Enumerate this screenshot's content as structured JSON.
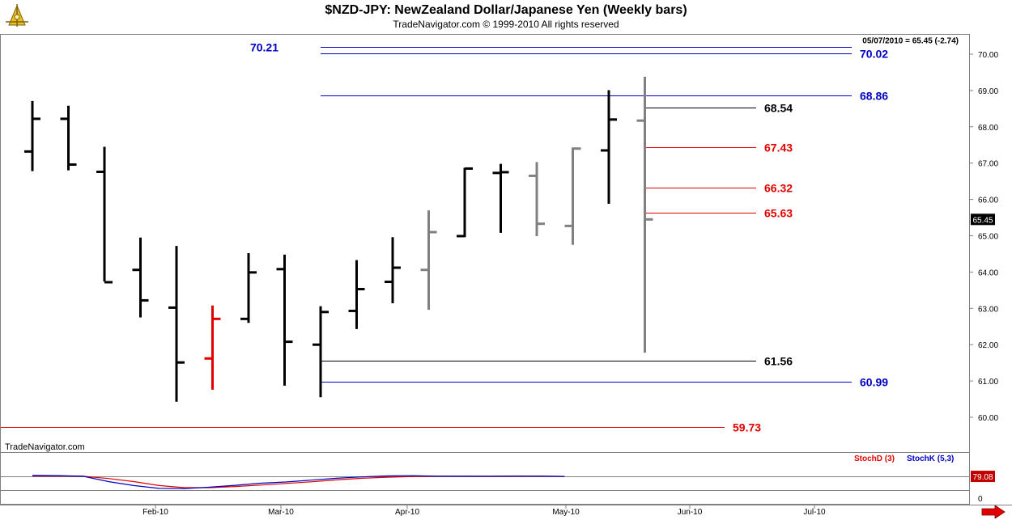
{
  "header": {
    "title": "$NZD-JPY:  NewZealand Dollar/Japanese Yen  (Weekly bars)",
    "subtitle": "TradeNavigator.com © 1999-2010 All rights reserved"
  },
  "watermark": "TradeNavigator.com",
  "last_bar_readout": "05/07/2010 = 65.45 (-2.74)",
  "chart_data": [
    {
      "type": "ohlc",
      "title": "$NZD-JPY:  NewZealand Dollar/Japanese Yen  (Weekly bars)",
      "ylim": [
        59.4,
        70.6
      ],
      "y_ticks": [
        "60.00",
        "61.00",
        "62.00",
        "63.00",
        "64.00",
        "65.00",
        "66.00",
        "67.00",
        "68.00",
        "69.00",
        "70.00"
      ],
      "x_ticks": [
        "Feb-10",
        "Mar-10",
        "Apr-10",
        "May-10",
        "Jun-10",
        "Jul-10"
      ],
      "last_price_label": "65.45",
      "bars": [
        {
          "week": 1,
          "open": 67.32,
          "high": 68.71,
          "low": 66.78,
          "close": 68.22,
          "color": "#000000"
        },
        {
          "week": 2,
          "open": 68.22,
          "high": 68.58,
          "low": 66.8,
          "close": 66.96,
          "color": "#000000"
        },
        {
          "week": 3,
          "open": 66.76,
          "high": 67.45,
          "low": 63.74,
          "close": 63.72,
          "color": "#000000"
        },
        {
          "week": 4,
          "open": 64.06,
          "high": 64.95,
          "low": 62.75,
          "close": 63.22,
          "color": "#000000"
        },
        {
          "week": 5,
          "open": 63.02,
          "high": 64.72,
          "low": 60.43,
          "close": 61.51,
          "color": "#000000"
        },
        {
          "week": 6,
          "open": 61.62,
          "high": 63.08,
          "low": 60.76,
          "close": 62.71,
          "color": "#e00000"
        },
        {
          "week": 7,
          "open": 62.71,
          "high": 64.52,
          "low": 62.6,
          "close": 63.99,
          "color": "#000000"
        },
        {
          "week": 8,
          "open": 64.08,
          "high": 64.48,
          "low": 60.87,
          "close": 62.08,
          "color": "#000000"
        },
        {
          "week": 9,
          "open": 62.0,
          "high": 63.06,
          "low": 60.55,
          "close": 62.9,
          "color": "#000000"
        },
        {
          "week": 10,
          "open": 62.93,
          "high": 64.33,
          "low": 62.43,
          "close": 63.53,
          "color": "#000000"
        },
        {
          "week": 11,
          "open": 63.73,
          "high": 64.96,
          "low": 63.14,
          "close": 64.12,
          "color": "#000000"
        },
        {
          "week": 12,
          "open": 64.06,
          "high": 65.7,
          "low": 62.96,
          "close": 65.1,
          "color": "#808080"
        },
        {
          "week": 13,
          "open": 64.99,
          "high": 66.87,
          "low": 64.96,
          "close": 66.85,
          "color": "#000000"
        },
        {
          "week": 14,
          "open": 66.73,
          "high": 66.98,
          "low": 65.08,
          "close": 66.75,
          "color": "#000000"
        },
        {
          "week": 15,
          "open": 66.65,
          "high": 67.03,
          "low": 64.99,
          "close": 65.33,
          "color": "#808080"
        },
        {
          "week": 16,
          "open": 65.27,
          "high": 67.43,
          "low": 64.75,
          "close": 67.4,
          "color": "#808080"
        },
        {
          "week": 17,
          "open": 67.35,
          "high": 69.01,
          "low": 65.88,
          "close": 68.2,
          "color": "#000000"
        },
        {
          "week": 18,
          "open": 68.17,
          "high": 69.38,
          "low": 61.78,
          "close": 65.45,
          "color": "#808080"
        }
      ],
      "levels": [
        {
          "value": 70.21,
          "label": "70.21",
          "color": "#0000c0",
          "label_side": "left",
          "x_start_week": 9.0,
          "x_end_week": 26.0
        },
        {
          "value": 70.02,
          "label": "70.02",
          "color": "#0000c0",
          "label_side": "right",
          "x_start_week": 9.0,
          "x_end_week": 26.0
        },
        {
          "value": 68.86,
          "label": "68.86",
          "color": "#0000c0",
          "label_side": "right",
          "x_start_week": 9.0,
          "x_end_week": 26.0
        },
        {
          "value": 68.54,
          "label": "68.54",
          "color": "#000000",
          "label_side": "right",
          "x_start_week": 18.0,
          "x_end_week": 21.0
        },
        {
          "value": 67.43,
          "label": "67.43",
          "color": "#e00000",
          "label_side": "right",
          "x_start_week": 18.0,
          "x_end_week": 21.0
        },
        {
          "value": 66.32,
          "label": "66.32",
          "color": "#e00000",
          "label_side": "right",
          "x_start_week": 18.0,
          "x_end_week": 21.0
        },
        {
          "value": 65.63,
          "label": "65.63",
          "color": "#e00000",
          "label_side": "right",
          "x_start_week": 18.0,
          "x_end_week": 21.0
        },
        {
          "value": 61.56,
          "label": "61.56",
          "color": "#000000",
          "label_side": "right",
          "x_start_week": 9.0,
          "x_end_week": 21.0
        },
        {
          "value": 60.99,
          "label": "60.99",
          "color": "#0000c0",
          "label_side": "right",
          "x_start_week": 9.0,
          "x_end_week": 26.0
        },
        {
          "value": 59.73,
          "label": "59.73",
          "color": "#e00000",
          "label_side": "right",
          "x_start_week": 0.0,
          "x_end_week": 22.0
        }
      ]
    },
    {
      "type": "line",
      "title": "",
      "ylim": [
        -10,
        100
      ],
      "y_ticks": [
        "0"
      ],
      "reference_lines": [
        20,
        80
      ],
      "last_value_label": "79.08",
      "series": [
        {
          "name": "StochD (3)",
          "color": "#e00000",
          "values": [
            81,
            80.5,
            79.5,
            70,
            57,
            40,
            31,
            31,
            36,
            42,
            49,
            56,
            64,
            71,
            75.5,
            78.5,
            79.5,
            79.5,
            79,
            79.5,
            80.5,
            79.08
          ]
        },
        {
          "name": "StochK (5,3)",
          "color": "#0000c0",
          "values": [
            83,
            82.5,
            79.5,
            57,
            40,
            28,
            27,
            33,
            41,
            50,
            55,
            63,
            71,
            77,
            81,
            82,
            80,
            79.5,
            79.5,
            80.5,
            80,
            79.08
          ]
        }
      ]
    }
  ]
}
